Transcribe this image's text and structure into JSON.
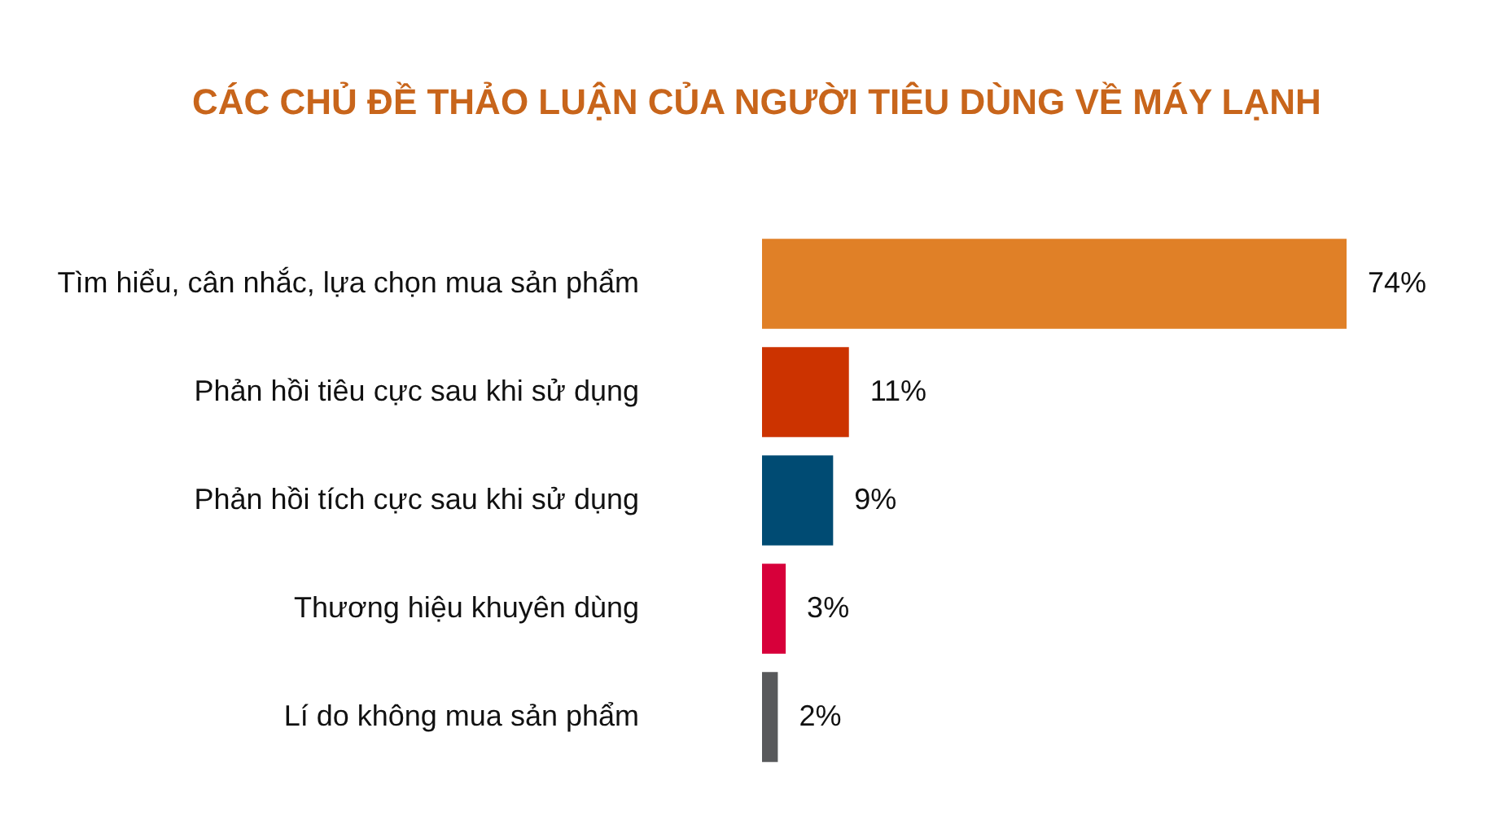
{
  "chart_data": {
    "type": "bar",
    "orientation": "horizontal",
    "title": "CÁC CHỦ ĐỀ THẢO LUẬN CỦA NGƯỜI TIÊU DÙNG VỀ MÁY LẠNH",
    "categories": [
      "Tìm hiểu, cân nhắc, lựa chọn mua sản phẩm",
      "Phản hồi tiêu cực sau khi sử dụng",
      "Phản hồi tích cực sau khi sử dụng",
      "Thương hiệu khuyên dùng",
      "Lí do không mua sản phẩm"
    ],
    "values": [
      74,
      11,
      9,
      3,
      2
    ],
    "colors": [
      "#e08027",
      "#cc3300",
      "#004b73",
      "#d7003a",
      "#58595b"
    ],
    "value_labels": [
      "74%",
      "11%",
      "9%",
      "3%",
      "2%"
    ],
    "tick_labels": "y"
  }
}
